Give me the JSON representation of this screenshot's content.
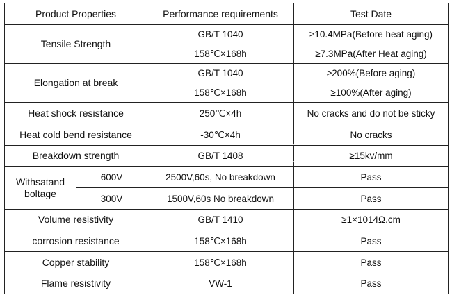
{
  "header": {
    "col1": "Product Properties",
    "col2": "Performance  requirements",
    "col3": "Test Date"
  },
  "rows": {
    "tensile": {
      "label": "Tensile Strength",
      "req1": "GB/T 1040",
      "val1": "≥10.4MPa(Before heat aging)",
      "req2": "158℃×168h",
      "val2": "≥7.3MPa(After Heat aging)"
    },
    "elongation": {
      "label": "Elongation at break",
      "req1": "GB/T 1040",
      "val1": "≥200%(Before aging)",
      "req2": "158℃×168h",
      "val2": "≥100%(After aging)"
    },
    "heat_shock": {
      "label": "Heat shock resistance",
      "req": "250℃×4h",
      "val": "No cracks and do not be sticky"
    },
    "cold_bend": {
      "label": "Heat cold bend resistance",
      "req": "-30℃×4h",
      "val": "No cracks"
    },
    "breakdown": {
      "label": "Breakdown strength",
      "req": "GB/T 1408",
      "val": "≥15kv/mm"
    },
    "withstand": {
      "label": "Withsatand boltage",
      "sub1": "600V",
      "req1": "2500V,60s, No breakdown",
      "val1": "Pass",
      "sub2": "300V",
      "req2": "1500V,60s No breakdown",
      "val2": "Pass"
    },
    "volume": {
      "label": "Volume resistivity",
      "req": "GB/T 1410",
      "val": "≥1×1014Ω.cm"
    },
    "corrosion": {
      "label": "corrosion resistance",
      "req": "158℃×168h",
      "val": "Pass"
    },
    "copper": {
      "label": "Copper stability",
      "req": "158℃×168h",
      "val": "Pass"
    },
    "flame": {
      "label": "Flame resistivity",
      "req": "VW-1",
      "val": "Pass"
    }
  }
}
